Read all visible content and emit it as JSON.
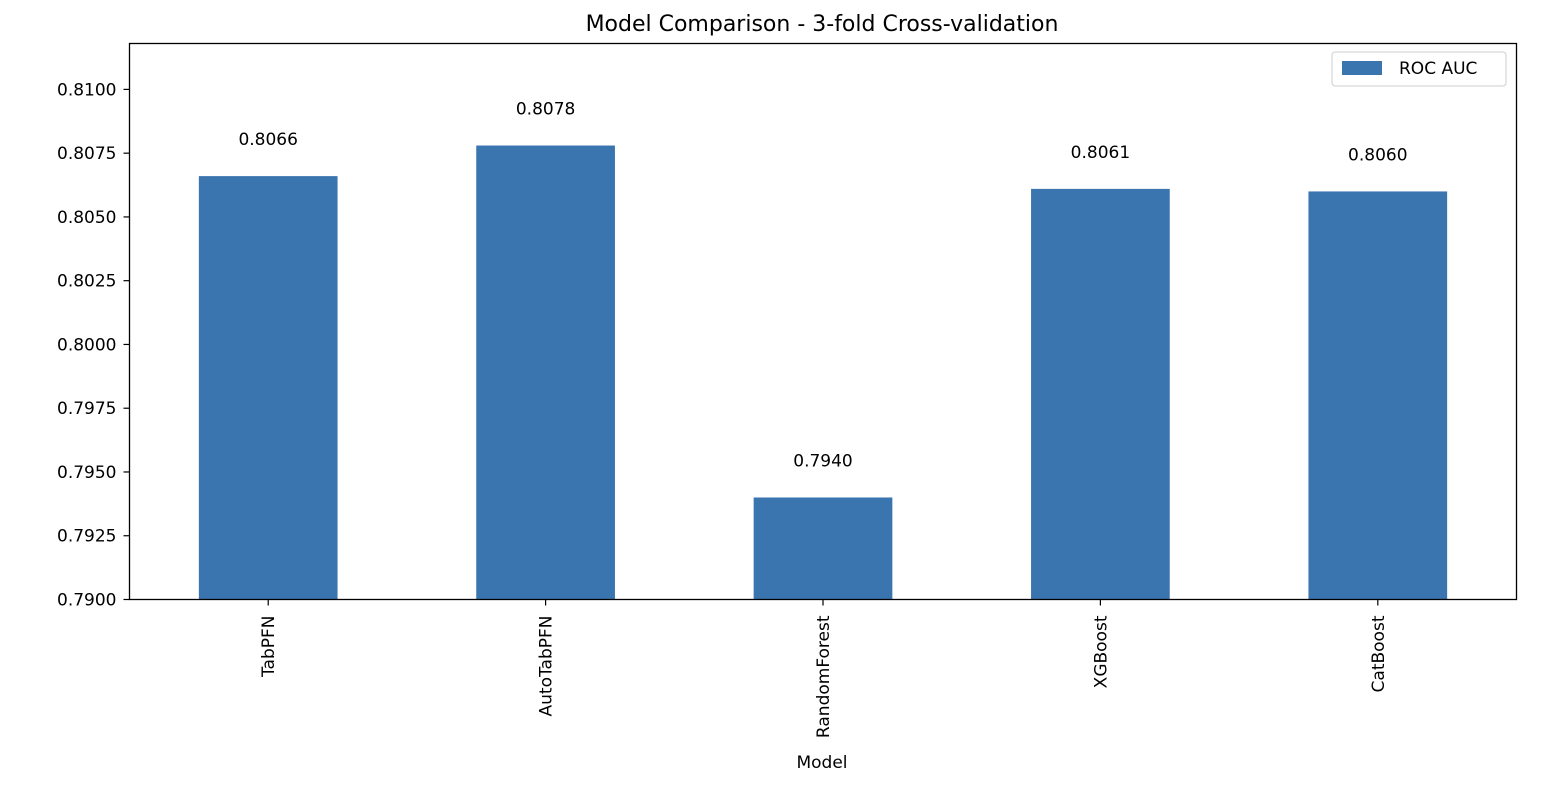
{
  "chart_data": {
    "type": "bar",
    "title": "Model Comparison - 3-fold Cross-validation",
    "xlabel": "Model",
    "ylabel": "",
    "categories": [
      "TabPFN",
      "AutoTabPFN",
      "RandomForest",
      "XGBoost",
      "CatBoost"
    ],
    "series": [
      {
        "name": "ROC AUC",
        "values": [
          0.8066,
          0.8078,
          0.794,
          0.8061,
          0.806
        ]
      }
    ],
    "value_labels": [
      "0.8066",
      "0.8078",
      "0.7940",
      "0.8061",
      "0.8060"
    ],
    "ylim": [
      0.79,
      0.8118
    ],
    "yticks": [
      0.79,
      0.7925,
      0.795,
      0.7975,
      0.8,
      0.8025,
      0.805,
      0.8075,
      0.81
    ],
    "ytick_labels": [
      "0.7900",
      "0.7925",
      "0.7950",
      "0.7975",
      "0.8000",
      "0.8025",
      "0.8050",
      "0.8075",
      "0.8100"
    ],
    "xtick_rotation": "vertical",
    "grid": false,
    "legend_position": "top-right",
    "colors": {
      "bar": "#3a75af",
      "axes": "#000000",
      "legend_border": "#cccccc"
    }
  }
}
